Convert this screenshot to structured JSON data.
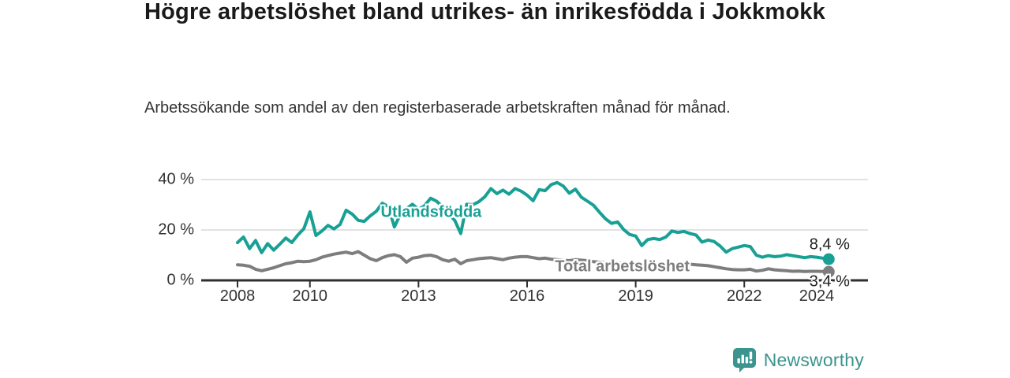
{
  "header": {
    "title": "Högre arbetslöshet bland utrikes- än inrikesfödda i Jokkmokk",
    "subtitle": "Arbetssökande som andel av den registerbaserade arbetskraften månad för månad."
  },
  "chart_data": {
    "type": "line",
    "title": "Högre arbetslöshet bland utrikes- än inrikesfödda i Jokkmokk",
    "subtitle": "Arbetssökande som andel av den registerbaserade arbetskraften månad för månad.",
    "ylabel": "",
    "xlabel": "",
    "unit": "%",
    "ylim": [
      0,
      42
    ],
    "xlim": [
      2007.0,
      2025.4
    ],
    "grid": "horizontal",
    "axis_color": "#2f2f2f",
    "grid_color": "#d9d9d9",
    "tick_label_color": "#333333",
    "y_ticks": [
      {
        "value": 0,
        "label": "0 %"
      },
      {
        "value": 20,
        "label": "20 %"
      },
      {
        "value": 40,
        "label": "40 %"
      }
    ],
    "x_ticks": [
      {
        "value": 2008,
        "label": "2008"
      },
      {
        "value": 2010,
        "label": "2010"
      },
      {
        "value": 2013,
        "label": "2013"
      },
      {
        "value": 2016,
        "label": "2016"
      },
      {
        "value": 2019,
        "label": "2019"
      },
      {
        "value": 2022,
        "label": "2022"
      },
      {
        "value": 2024,
        "label": "2024"
      }
    ],
    "x_start": 2008.0,
    "x_step": 0.166667,
    "series": [
      {
        "name": "Utlandsfödda",
        "color": "#18a094",
        "end_label": "8,4 %",
        "end_label_position": "above",
        "label_pos": {
          "x": 2013.35,
          "y": 26.9
        },
        "values": [
          15.0,
          17.2,
          12.6,
          15.8,
          11.0,
          14.6,
          12.0,
          14.3,
          16.8,
          15.0,
          18.0,
          20.5,
          27.2,
          17.8,
          19.6,
          21.8,
          20.4,
          22.2,
          27.8,
          26.3,
          23.8,
          23.4,
          25.6,
          27.4,
          30.6,
          29.3,
          21.2,
          26.2,
          28.4,
          30.2,
          28.2,
          29.6,
          32.6,
          31.4,
          29.2,
          26.4,
          23.8,
          18.6,
          30.2,
          30.0,
          31.2,
          33.2,
          36.4,
          34.4,
          35.8,
          34.2,
          36.4,
          35.4,
          33.8,
          31.6,
          36.0,
          35.6,
          38.0,
          38.8,
          37.4,
          34.6,
          36.2,
          33.0,
          31.4,
          29.8,
          27.0,
          24.4,
          22.6,
          23.2,
          20.2,
          18.2,
          17.6,
          13.8,
          16.2,
          16.6,
          16.2,
          17.2,
          19.6,
          19.0,
          19.4,
          18.6,
          18.0,
          15.2,
          16.0,
          15.4,
          13.6,
          11.2,
          12.6,
          13.2,
          13.8,
          13.4,
          10.0,
          9.2,
          9.8,
          9.4,
          9.6,
          10.2,
          9.8,
          9.4,
          9.0,
          9.4,
          9.2,
          8.8,
          8.4
        ]
      },
      {
        "name": "Total arbetslöshet",
        "color": "#7d7d7d",
        "end_label": "3,4 %",
        "end_label_position": "below",
        "label_pos": {
          "x": 2018.63,
          "y": 5.2
        },
        "values": [
          6.2,
          6.0,
          5.6,
          4.4,
          3.8,
          4.4,
          5.0,
          5.8,
          6.6,
          7.0,
          7.6,
          7.4,
          7.6,
          8.2,
          9.2,
          9.8,
          10.4,
          10.8,
          11.2,
          10.6,
          11.4,
          10.0,
          8.6,
          7.8,
          9.0,
          9.8,
          10.2,
          9.4,
          7.2,
          8.8,
          9.2,
          9.8,
          10.0,
          9.4,
          8.2,
          7.6,
          8.4,
          6.6,
          7.8,
          8.2,
          8.6,
          8.8,
          9.0,
          8.6,
          8.2,
          8.8,
          9.2,
          9.4,
          9.4,
          9.0,
          8.6,
          8.8,
          8.4,
          8.2,
          8.0,
          7.8,
          8.2,
          8.0,
          7.8,
          7.4,
          7.2,
          7.0,
          6.8,
          7.0,
          6.6,
          6.2,
          6.0,
          5.8,
          6.2,
          6.0,
          5.8,
          6.0,
          6.2,
          6.4,
          6.6,
          6.4,
          6.2,
          6.0,
          5.8,
          5.4,
          5.0,
          4.6,
          4.3,
          4.2,
          4.2,
          4.4,
          3.7,
          4.0,
          4.6,
          4.2,
          4.0,
          3.8,
          3.6,
          3.7,
          3.5,
          3.6,
          3.6,
          3.5,
          3.4
        ]
      }
    ]
  },
  "branding": {
    "name": "Newsworthy",
    "icon": "newsworthy-bars-pin-icon",
    "color": "#3b948e"
  }
}
